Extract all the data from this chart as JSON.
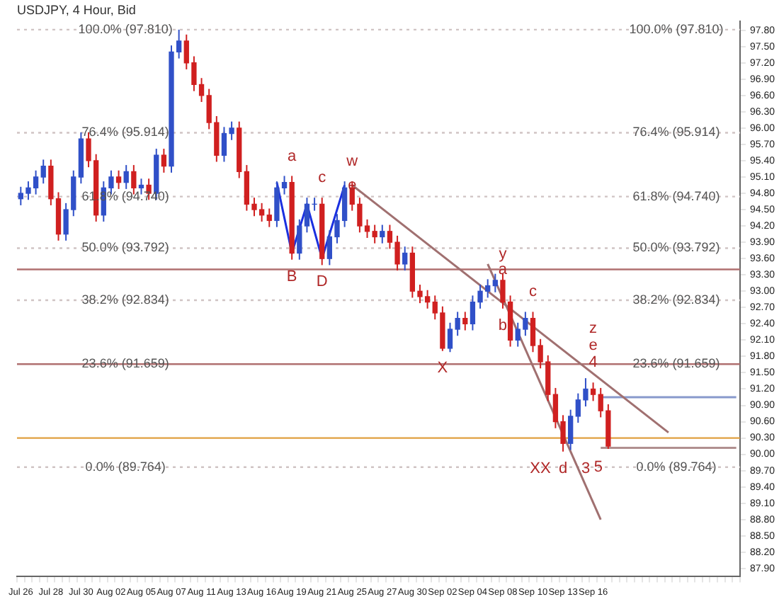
{
  "chart_data": {
    "type": "candlestick",
    "title": "USDJPY, 4 Hour, Bid",
    "categories": [
      "Jul 26",
      null,
      null,
      null,
      "Jul 28",
      null,
      null,
      null,
      "Jul 30",
      null,
      null,
      null,
      "Aug 02",
      null,
      null,
      null,
      "Aug 05",
      null,
      null,
      null,
      "Aug 07",
      null,
      null,
      null,
      "Aug 11",
      null,
      null,
      null,
      "Aug 13",
      null,
      null,
      null,
      "Aug 16",
      null,
      null,
      null,
      "Aug 19",
      null,
      null,
      null,
      "Aug 21",
      null,
      null,
      null,
      "Aug 25",
      null,
      null,
      null,
      "Aug 27",
      null,
      null,
      null,
      "Aug 30",
      null,
      null,
      null,
      "Sep 02",
      null,
      null,
      null,
      "Sep 04",
      null,
      null,
      null,
      "Sep 08",
      null,
      null,
      null,
      "Sep 10",
      null,
      null,
      null,
      "Sep 13",
      null,
      null,
      null,
      "Sep 16",
      null,
      null,
      null,
      null,
      null,
      null,
      null,
      null,
      null,
      null,
      null,
      null,
      null,
      null,
      null,
      null,
      null,
      null,
      null
    ],
    "ohlc": [
      [
        94.7,
        94.92,
        94.58,
        94.8
      ],
      [
        94.8,
        95.02,
        94.68,
        94.9
      ],
      [
        94.9,
        95.22,
        94.78,
        95.1
      ],
      [
        95.1,
        95.42,
        94.98,
        95.3
      ],
      [
        95.3,
        95.42,
        94.58,
        94.7
      ],
      [
        94.7,
        94.82,
        93.93,
        94.05
      ],
      [
        94.05,
        94.62,
        93.93,
        94.5
      ],
      [
        94.5,
        95.22,
        94.38,
        95.1
      ],
      [
        95.1,
        95.92,
        94.98,
        95.8
      ],
      [
        95.8,
        95.92,
        95.28,
        95.4
      ],
      [
        95.4,
        95.52,
        94.28,
        94.4
      ],
      [
        94.4,
        95.02,
        94.28,
        94.9
      ],
      [
        94.9,
        95.22,
        94.78,
        95.1
      ],
      [
        95.1,
        95.22,
        94.88,
        95.0
      ],
      [
        95.0,
        95.32,
        94.88,
        95.2
      ],
      [
        95.2,
        95.32,
        94.78,
        94.9
      ],
      [
        94.9,
        95.07,
        94.78,
        94.95
      ],
      [
        94.95,
        95.07,
        94.68,
        94.8
      ],
      [
        94.8,
        95.62,
        94.68,
        95.5
      ],
      [
        95.5,
        95.62,
        95.18,
        95.3
      ],
      [
        95.3,
        97.52,
        95.18,
        97.4
      ],
      [
        97.4,
        97.81,
        97.28,
        97.6
      ],
      [
        97.6,
        97.72,
        97.08,
        97.2
      ],
      [
        97.2,
        97.32,
        96.68,
        96.8
      ],
      [
        96.8,
        96.92,
        96.48,
        96.6
      ],
      [
        96.6,
        96.72,
        95.98,
        96.1
      ],
      [
        96.1,
        96.22,
        95.38,
        95.5
      ],
      [
        95.5,
        96.02,
        95.38,
        95.9
      ],
      [
        95.9,
        96.12,
        95.78,
        96.0
      ],
      [
        96.0,
        96.12,
        95.08,
        95.2
      ],
      [
        95.2,
        95.32,
        94.48,
        94.6
      ],
      [
        94.6,
        94.72,
        94.38,
        94.5
      ],
      [
        94.5,
        94.62,
        94.28,
        94.4
      ],
      [
        94.4,
        94.52,
        94.18,
        94.3
      ],
      [
        94.3,
        95.02,
        94.18,
        94.9
      ],
      [
        94.9,
        95.12,
        94.78,
        95.0
      ],
      [
        95.0,
        95.12,
        93.58,
        93.7
      ],
      [
        93.7,
        94.32,
        93.58,
        94.2
      ],
      [
        94.2,
        94.72,
        94.08,
        94.6
      ],
      [
        94.6,
        94.72,
        94.48,
        94.6
      ],
      [
        94.6,
        94.72,
        93.48,
        93.6
      ],
      [
        93.6,
        94.12,
        93.48,
        94.0
      ],
      [
        94.0,
        94.42,
        93.88,
        94.3
      ],
      [
        94.3,
        95.02,
        94.18,
        94.9
      ],
      [
        94.9,
        95.02,
        94.48,
        94.6
      ],
      [
        94.6,
        94.72,
        94.08,
        94.2
      ],
      [
        94.2,
        94.32,
        93.98,
        94.1
      ],
      [
        94.1,
        94.22,
        93.88,
        94.0
      ],
      [
        94.0,
        94.22,
        93.88,
        94.1
      ],
      [
        94.1,
        94.22,
        93.78,
        93.9
      ],
      [
        93.9,
        94.02,
        93.38,
        93.5
      ],
      [
        93.5,
        93.82,
        93.38,
        93.7
      ],
      [
        93.7,
        93.82,
        92.88,
        93.0
      ],
      [
        93.0,
        93.12,
        92.78,
        92.9
      ],
      [
        92.9,
        93.02,
        92.68,
        92.8
      ],
      [
        92.8,
        92.92,
        92.48,
        92.6
      ],
      [
        92.6,
        92.72,
        91.9,
        91.95
      ],
      [
        91.95,
        92.42,
        91.88,
        92.3
      ],
      [
        92.3,
        92.62,
        92.18,
        92.5
      ],
      [
        92.5,
        92.62,
        92.28,
        92.4
      ],
      [
        92.4,
        92.92,
        92.28,
        92.8
      ],
      [
        92.8,
        93.12,
        92.68,
        93.0
      ],
      [
        93.0,
        93.22,
        92.88,
        93.1
      ],
      [
        93.1,
        93.32,
        92.98,
        93.2
      ],
      [
        93.2,
        93.32,
        92.68,
        92.8
      ],
      [
        92.8,
        92.92,
        91.98,
        92.1
      ],
      [
        92.1,
        92.42,
        91.98,
        92.3
      ],
      [
        92.3,
        92.62,
        92.18,
        92.5
      ],
      [
        92.5,
        92.62,
        91.88,
        92.0
      ],
      [
        92.0,
        92.12,
        91.58,
        91.7
      ],
      [
        91.7,
        91.82,
        90.98,
        91.1
      ],
      [
        91.1,
        91.22,
        90.48,
        90.6
      ],
      [
        90.6,
        90.72,
        90.05,
        90.2
      ],
      [
        90.2,
        90.82,
        90.08,
        90.7
      ],
      [
        90.7,
        91.12,
        90.58,
        91.0
      ],
      [
        91.0,
        91.4,
        90.88,
        91.2
      ],
      [
        91.2,
        91.32,
        90.98,
        91.1
      ],
      [
        91.1,
        91.22,
        90.68,
        90.8
      ],
      [
        90.8,
        90.92,
        90.1,
        90.15
      ],
      null,
      null,
      null,
      null,
      null,
      null,
      null,
      null,
      null,
      null,
      null,
      null,
      null,
      null,
      null,
      null,
      null
    ],
    "series": [
      {
        "type": "line",
        "color": "#1a30e0",
        "values": [
          null,
          null,
          null,
          null,
          null,
          null,
          null,
          null,
          null,
          null,
          null,
          null,
          null,
          null,
          null,
          null,
          null,
          null,
          null,
          null,
          null,
          null,
          null,
          null,
          null,
          null,
          null,
          null,
          null,
          null,
          null,
          null,
          null,
          null,
          95.0,
          null,
          93.7,
          null,
          94.6,
          null,
          93.6,
          null,
          null,
          94.95,
          null,
          null,
          null,
          null,
          null,
          null,
          null,
          null,
          null,
          null,
          null,
          null,
          null,
          null,
          null,
          null,
          null,
          null,
          null,
          null,
          null,
          null,
          null,
          null,
          null,
          null,
          null,
          null,
          null,
          null,
          null,
          null,
          null,
          null,
          null,
          null,
          null,
          null,
          null,
          null,
          null,
          null,
          null,
          null,
          null,
          null,
          null,
          null,
          null,
          null,
          null,
          null
        ]
      },
      {
        "type": "line",
        "color": "#a07070",
        "values": [
          null,
          null,
          null,
          null,
          null,
          null,
          null,
          null,
          null,
          null,
          null,
          null,
          null,
          null,
          null,
          null,
          null,
          null,
          null,
          null,
          null,
          null,
          null,
          null,
          null,
          null,
          null,
          null,
          null,
          null,
          null,
          null,
          null,
          null,
          null,
          null,
          null,
          null,
          null,
          null,
          null,
          null,
          null,
          null,
          94.95,
          null,
          null,
          null,
          null,
          null,
          null,
          null,
          null,
          null,
          null,
          null,
          null,
          null,
          null,
          null,
          null,
          null,
          null,
          null,
          null,
          null,
          null,
          null,
          null,
          null,
          null,
          null,
          null,
          null,
          null,
          null,
          null,
          null,
          null,
          null,
          null,
          null,
          null,
          null,
          null,
          null,
          90.4,
          null,
          null,
          null,
          null,
          null,
          null,
          null,
          null,
          null
        ]
      },
      {
        "type": "line",
        "color": "#a07070",
        "values": [
          null,
          null,
          null,
          null,
          null,
          null,
          null,
          null,
          null,
          null,
          null,
          null,
          null,
          null,
          null,
          null,
          null,
          null,
          null,
          null,
          null,
          null,
          null,
          null,
          null,
          null,
          null,
          null,
          null,
          null,
          null,
          null,
          null,
          null,
          null,
          null,
          null,
          null,
          null,
          null,
          null,
          null,
          null,
          null,
          null,
          null,
          null,
          null,
          null,
          null,
          null,
          null,
          null,
          null,
          null,
          null,
          null,
          null,
          null,
          null,
          null,
          null,
          93.5,
          null,
          null,
          null,
          null,
          null,
          null,
          null,
          null,
          null,
          null,
          null,
          null,
          null,
          null,
          88.8,
          null,
          null,
          null,
          null,
          null,
          null,
          null,
          null,
          null,
          null,
          null,
          null,
          null,
          null,
          null,
          null,
          null,
          null
        ]
      },
      {
        "type": "line",
        "color": "#8899cc",
        "values": [
          null,
          null,
          null,
          null,
          null,
          null,
          null,
          null,
          null,
          null,
          null,
          null,
          null,
          null,
          null,
          null,
          null,
          null,
          null,
          null,
          null,
          null,
          null,
          null,
          null,
          null,
          null,
          null,
          null,
          null,
          null,
          null,
          null,
          null,
          null,
          null,
          null,
          null,
          null,
          null,
          null,
          null,
          null,
          null,
          null,
          null,
          null,
          null,
          null,
          null,
          null,
          null,
          null,
          null,
          null,
          null,
          null,
          null,
          null,
          null,
          null,
          null,
          null,
          null,
          null,
          null,
          null,
          null,
          null,
          null,
          null,
          null,
          null,
          null,
          null,
          null,
          null,
          91.05,
          91.05,
          91.05,
          91.05,
          91.05,
          91.05,
          91.05,
          91.05,
          91.05,
          91.05,
          91.05,
          91.05,
          91.05,
          91.05,
          91.05,
          91.05,
          91.05,
          91.05,
          91.05
        ]
      },
      {
        "type": "line",
        "color": "#b09090",
        "values": [
          null,
          null,
          null,
          null,
          null,
          null,
          null,
          null,
          null,
          null,
          null,
          null,
          null,
          null,
          null,
          null,
          null,
          null,
          null,
          null,
          null,
          null,
          null,
          null,
          null,
          null,
          null,
          null,
          null,
          null,
          null,
          null,
          null,
          null,
          null,
          null,
          null,
          null,
          null,
          null,
          null,
          null,
          null,
          null,
          null,
          null,
          null,
          null,
          null,
          null,
          null,
          null,
          null,
          null,
          null,
          null,
          null,
          null,
          null,
          null,
          null,
          null,
          null,
          null,
          null,
          null,
          null,
          null,
          null,
          null,
          null,
          null,
          null,
          null,
          null,
          null,
          null,
          90.12,
          90.12,
          90.12,
          90.12,
          90.12,
          90.12,
          90.12,
          90.12,
          90.12,
          90.12,
          90.12,
          90.12,
          90.12,
          90.12,
          90.12,
          90.12,
          90.12,
          90.12,
          90.12
        ]
      }
    ],
    "ref_lines": [
      {
        "axis": "y",
        "value": 97.81,
        "label": "100.0% (97.810)",
        "color": "#d0c4c4",
        "line_style": "dotted"
      },
      {
        "axis": "y",
        "value": 95.914,
        "label": "76.4% (95.914)",
        "color": "#d0c4c4",
        "line_style": "dotted"
      },
      {
        "axis": "y",
        "value": 94.74,
        "label": "61.8% (94.740)",
        "color": "#d0c4c4",
        "line_style": "dotted"
      },
      {
        "axis": "y",
        "value": 93.792,
        "label": "50.0% (93.792)",
        "color": "#d0c4c4",
        "line_style": "dotted"
      },
      {
        "axis": "y",
        "value": 92.834,
        "label": "38.2% (92.834)",
        "color": "#d0c4c4",
        "line_style": "dotted"
      },
      {
        "axis": "y",
        "value": 91.659,
        "label": "23.6% (91.659)",
        "color": "#b07070"
      },
      {
        "axis": "y",
        "value": 89.764,
        "label": "0.0% (89.764)",
        "color": "#d0c4c4",
        "line_style": "dotted"
      },
      {
        "axis": "y",
        "value": 93.4,
        "color": "#b07070"
      },
      {
        "axis": "y",
        "value": 90.3,
        "color": "#e0a040"
      }
    ],
    "annotations": [
      {
        "text": "a",
        "x": "Aug 19",
        "y": 95.12
      },
      {
        "text": "B",
        "x": "Aug 19",
        "y": 93.58
      },
      {
        "text": "c",
        "x": "Aug 21",
        "y": 94.72
      },
      {
        "text": "D",
        "x": "Aug 21",
        "y": 93.48
      },
      {
        "text": "w",
        "x": "Aug 25",
        "y": 95.02
      },
      {
        "text": "e",
        "x": "Aug 25",
        "y": 94.95
      },
      {
        "text": "X",
        "x": "Sep 02",
        "y": 91.9
      },
      {
        "text": "y",
        "x": "Sep 08",
        "y": 93.32
      },
      {
        "text": "a",
        "x": "Sep 08",
        "y": 93.4
      },
      {
        "text": "b",
        "x": "Sep 08",
        "y": 92.68
      },
      {
        "text": "c",
        "x": "Sep 10",
        "y": 92.62
      },
      {
        "text": "XX",
        "x": "Sep 13",
        "y": 90.05
      },
      {
        "text": "d",
        "x": "Sep 13",
        "y": 90.05
      },
      {
        "text": "3",
        "x": "Sep 13",
        "y": 90.05
      },
      {
        "text": "4",
        "x": "Sep 16",
        "y": 91.32
      },
      {
        "text": "e",
        "x": "Sep 16",
        "y": 91.32
      },
      {
        "text": "z",
        "x": "Sep 16",
        "y": 91.32
      },
      "5"
    ],
    "ylim": [
      87.75,
      97.97
    ],
    "yticks": [
      {
        "value": 87.9,
        "label": "87.90"
      },
      {
        "value": 88.2,
        "label": "88.20"
      },
      {
        "value": 88.5,
        "label": "88.50"
      },
      {
        "value": 88.8,
        "label": "88.80"
      },
      {
        "value": 89.1,
        "label": "89.10"
      },
      {
        "value": 89.4,
        "label": "89.40"
      },
      {
        "value": 89.7,
        "label": "89.70"
      },
      {
        "value": 90.0,
        "label": "90.00"
      },
      {
        "value": 90.3,
        "label": "90.30"
      },
      {
        "value": 90.6,
        "label": "90.60"
      },
      {
        "value": 90.9,
        "label": "90.90"
      },
      {
        "value": 91.2,
        "label": "91.20"
      },
      {
        "value": 91.5,
        "label": "91.50"
      },
      {
        "value": 91.8,
        "label": "91.80"
      },
      {
        "value": 92.1,
        "label": "92.10"
      },
      {
        "value": 92.4,
        "label": "92.40"
      },
      {
        "value": 92.7,
        "label": "92.70"
      },
      {
        "value": 93.0,
        "label": "93.00"
      },
      {
        "value": 93.3,
        "label": "93.30"
      },
      {
        "value": 93.6,
        "label": "93.60"
      },
      {
        "value": 93.9,
        "label": "93.90"
      },
      {
        "value": 94.2,
        "label": "94.20"
      },
      {
        "value": 94.5,
        "label": "94.50"
      },
      {
        "value": 94.8,
        "label": "94.80"
      },
      {
        "value": 95.1,
        "label": "95.10"
      },
      {
        "value": 95.4,
        "label": "95.40"
      },
      {
        "value": 95.7,
        "label": "95.70"
      },
      {
        "value": 96.0,
        "label": "96.00"
      },
      {
        "value": 96.3,
        "label": "96.30"
      },
      {
        "value": 96.6,
        "label": "96.60"
      },
      {
        "value": 96.9,
        "label": "96.90"
      },
      {
        "value": 97.2,
        "label": "97.20"
      },
      {
        "value": 97.5,
        "label": "97.50"
      },
      {
        "value": 97.8,
        "label": "97.80"
      }
    ],
    "grid": false,
    "legend": false
  }
}
